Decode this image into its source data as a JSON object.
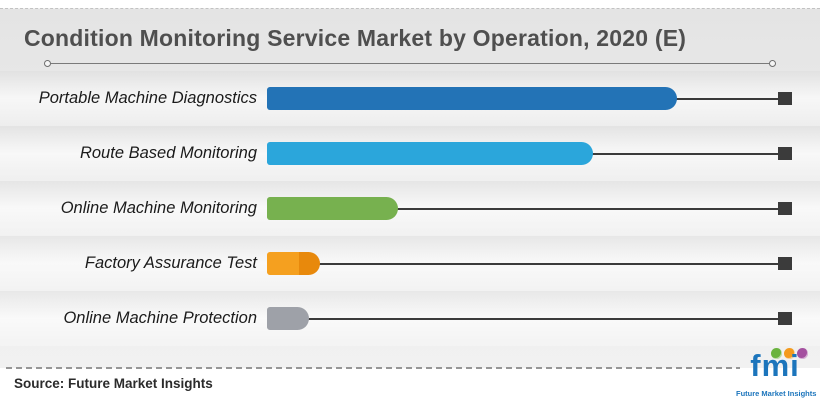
{
  "chart_data": {
    "type": "bar",
    "orientation": "horizontal",
    "title": "Condition Monitoring Service Market by Operation, 2020 (E)",
    "categories": [
      "Portable Machine Diagnostics",
      "Route Based Monitoring",
      "Online Machine Monitoring",
      "Factory Assurance Test",
      "Online Machine Protection"
    ],
    "values": [
      78,
      62,
      25,
      10,
      8
    ],
    "values_note": "no numeric axis labels shown; bar lengths estimated as percent of axis span",
    "unit": "percent-of-axis-span",
    "colors": [
      "#2373b6",
      "#2ba6db",
      "#77b14f",
      "#f5a01f",
      "#9ea1a8"
    ],
    "cap_colors": [
      null,
      null,
      null,
      "#e8890c",
      null
    ],
    "leader_line_color": "#3b3b3b",
    "marker_color": "#3b3b3b",
    "legend": false,
    "grid": false,
    "xlabel": "",
    "ylabel": ""
  },
  "footer": {
    "source_label": "Source: Future Market Insights",
    "logo": {
      "text": "fmi",
      "caption": "Future Market Insights",
      "brand_color": "#1c75bc",
      "dot_colors": [
        "#6ab33e",
        "#f49a1c",
        "#a4509f"
      ]
    }
  }
}
